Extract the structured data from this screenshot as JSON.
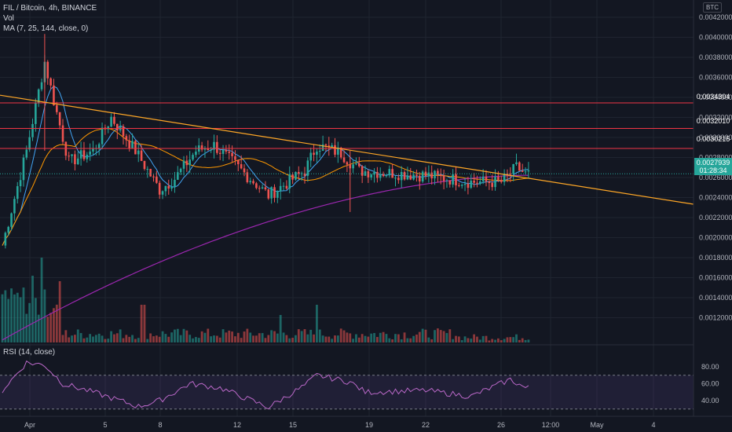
{
  "header": {
    "title": "FIL / Bitcoin, 4h, BINANCE",
    "vol_label": "Vol",
    "ma_label": "MA (7, 25, 144, close, 0)",
    "currency": "BTC"
  },
  "price_axis": {
    "labels": [
      "0.0042000",
      "0.0040000",
      "0.0038000",
      "0.0036000",
      "0.0034000",
      "0.0032000",
      "0.0030000",
      "0.0028000",
      "0.0026000",
      "0.0024000",
      "0.0022000",
      "0.0020000",
      "0.0018000",
      "0.0016000",
      "0.0014000",
      "0.0012000"
    ],
    "hlines": [
      {
        "label": "0.0034304",
        "color": "#f23645"
      },
      {
        "label": "0.0032010",
        "color": "#f23645"
      },
      {
        "label": "0.0030215",
        "color": "#f23645"
      }
    ],
    "current_price": "0.0027939",
    "countdown": "01:28:34"
  },
  "time_axis": {
    "labels": [
      "Apr",
      "5",
      "8",
      "12",
      "15",
      "19",
      "22",
      "26",
      "12:00",
      "May",
      "4"
    ]
  },
  "rsi": {
    "label": "RSI (14, close)",
    "levels": [
      "80.00",
      "60.00",
      "40.00"
    ]
  },
  "colors": {
    "background": "#131722",
    "up": "#26a69a",
    "down": "#ef5350",
    "ma_fast": "#42a5f5",
    "ma_mid": "#ff9800",
    "ma_slow": "#9c27b0",
    "trendline": "#ffa726",
    "rsi_line": "#ba68c8"
  },
  "chart_data": {
    "type": "candlestick",
    "x_labels": [
      "Apr",
      "5",
      "8",
      "12",
      "15",
      "19",
      "22",
      "26",
      "12:00",
      "May",
      "4"
    ],
    "price_range": [
      0.0011,
      0.0043
    ],
    "anchors": [
      {
        "t": 0,
        "price": 0.00215
      },
      {
        "t": 8,
        "price": 0.003
      },
      {
        "t": 14,
        "price": 0.0038
      },
      {
        "t": 17,
        "price": 0.00345
      },
      {
        "t": 22,
        "price": 0.0029
      },
      {
        "t": 30,
        "price": 0.003
      },
      {
        "t": 36,
        "price": 0.0033
      },
      {
        "t": 44,
        "price": 0.003
      },
      {
        "t": 52,
        "price": 0.00265
      },
      {
        "t": 57,
        "price": 0.00275
      },
      {
        "t": 64,
        "price": 0.003
      },
      {
        "t": 70,
        "price": 0.00305
      },
      {
        "t": 80,
        "price": 0.0028
      },
      {
        "t": 88,
        "price": 0.0026
      },
      {
        "t": 100,
        "price": 0.00282
      },
      {
        "t": 104,
        "price": 0.00305
      },
      {
        "t": 112,
        "price": 0.00298
      },
      {
        "t": 118,
        "price": 0.00282
      },
      {
        "t": 140,
        "price": 0.00278
      },
      {
        "t": 155,
        "price": 0.00272
      },
      {
        "t": 165,
        "price": 0.00272
      },
      {
        "t": 170,
        "price": 0.00285
      },
      {
        "t": 173,
        "price": 0.00279
      }
    ],
    "rsi_range": [
      25,
      90
    ],
    "rsi_anchors": [
      {
        "t": 0,
        "v": 52
      },
      {
        "t": 8,
        "v": 85
      },
      {
        "t": 14,
        "v": 82
      },
      {
        "t": 20,
        "v": 60
      },
      {
        "t": 30,
        "v": 50
      },
      {
        "t": 45,
        "v": 33
      },
      {
        "t": 52,
        "v": 40
      },
      {
        "t": 62,
        "v": 60
      },
      {
        "t": 72,
        "v": 55
      },
      {
        "t": 88,
        "v": 32
      },
      {
        "t": 100,
        "v": 58
      },
      {
        "t": 104,
        "v": 70
      },
      {
        "t": 115,
        "v": 62
      },
      {
        "t": 120,
        "v": 50
      },
      {
        "t": 140,
        "v": 52
      },
      {
        "t": 155,
        "v": 45
      },
      {
        "t": 168,
        "v": 65
      },
      {
        "t": 173,
        "v": 55
      }
    ]
  }
}
